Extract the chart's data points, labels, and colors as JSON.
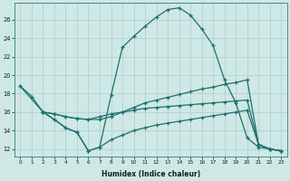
{
  "xlabel": "Humidex (Indice chaleur)",
  "background_color": "#cee8e5",
  "grid_color": "#aacfcc",
  "line_color": "#1e7070",
  "x_ticks": [
    0,
    1,
    2,
    3,
    4,
    5,
    6,
    7,
    8,
    9,
    10,
    11,
    12,
    13,
    14,
    15,
    16,
    17,
    18,
    19,
    20,
    21,
    22,
    23
  ],
  "y_ticks": [
    12,
    14,
    16,
    18,
    20,
    22,
    24,
    26
  ],
  "ylim": [
    11.2,
    27.8
  ],
  "xlim": [
    -0.5,
    23.5
  ],
  "curve_main": {
    "x": [
      0,
      1,
      2,
      3,
      4,
      5,
      6,
      7,
      8,
      9,
      10,
      11,
      12,
      13,
      14,
      15,
      16,
      17,
      18,
      19,
      20,
      21,
      22,
      23
    ],
    "y": [
      18.8,
      17.7,
      16.0,
      15.2,
      14.3,
      13.8,
      11.8,
      12.2,
      17.8,
      23.0,
      24.2,
      25.3,
      26.3,
      27.1,
      27.3,
      26.5,
      25.0,
      23.2,
      19.5,
      17.0,
      13.2,
      12.2,
      12.0,
      11.8
    ]
  },
  "curve_high_flat": {
    "x": [
      0,
      2,
      3,
      4,
      5,
      6,
      7,
      8,
      9,
      10,
      11,
      12,
      13,
      14,
      15,
      16,
      17,
      18,
      19,
      20,
      21,
      22,
      23
    ],
    "y": [
      18.8,
      16.0,
      15.8,
      15.5,
      15.3,
      15.2,
      15.2,
      15.5,
      16.0,
      16.5,
      17.0,
      17.3,
      17.6,
      17.9,
      18.2,
      18.5,
      18.7,
      19.0,
      19.2,
      19.5,
      12.5,
      12.0,
      11.8
    ]
  },
  "curve_mid_flat": {
    "x": [
      2,
      3,
      4,
      5,
      6,
      7,
      8,
      9,
      10,
      11,
      12,
      13,
      14,
      15,
      16,
      17,
      18,
      19,
      20,
      21,
      22,
      23
    ],
    "y": [
      16.0,
      15.8,
      15.5,
      15.3,
      15.2,
      15.5,
      15.8,
      16.0,
      16.2,
      16.4,
      16.5,
      16.6,
      16.7,
      16.8,
      16.9,
      17.0,
      17.1,
      17.2,
      17.3,
      12.5,
      12.0,
      11.8
    ]
  },
  "curve_low": {
    "x": [
      2,
      3,
      4,
      5,
      6,
      7,
      8,
      9,
      10,
      11,
      12,
      13,
      14,
      15,
      16,
      17,
      18,
      19,
      20,
      21,
      22,
      23
    ],
    "y": [
      16.0,
      15.2,
      14.3,
      13.8,
      11.8,
      12.2,
      13.0,
      13.5,
      14.0,
      14.3,
      14.6,
      14.8,
      15.0,
      15.2,
      15.4,
      15.6,
      15.8,
      16.0,
      16.2,
      12.5,
      12.0,
      11.8
    ]
  }
}
